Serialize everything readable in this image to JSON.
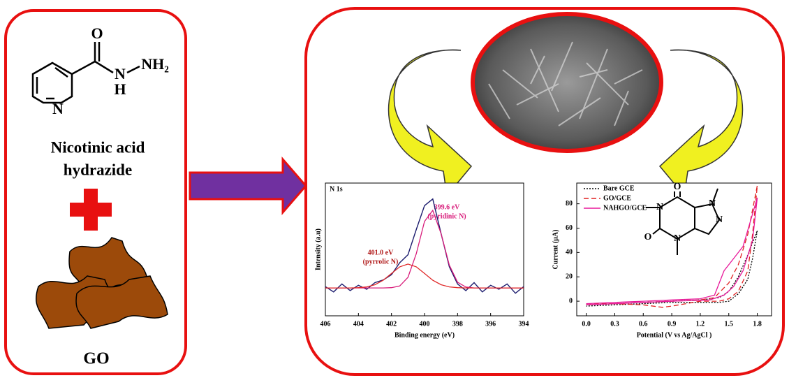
{
  "left_panel": {
    "structure_atoms": [
      "O",
      "N",
      "H",
      "NH₂"
    ],
    "name_lines": [
      "Nicotinic acid",
      "hydrazide"
    ],
    "go_label": "GO"
  },
  "inset_structure_atoms": [
    "O",
    "N",
    "N",
    "N",
    "O",
    "N"
  ],
  "chart_data": [
    {
      "type": "line",
      "title": "N 1s",
      "x_label": "Binding energy (eV)",
      "y_label": "Intensity (a.u)",
      "xlim": [
        406,
        394
      ],
      "xticks": [
        406,
        404,
        402,
        400,
        398,
        396,
        394
      ],
      "ylim": [
        0,
        100
      ],
      "annotations": [
        "399.6 eV",
        "(pyridinic N)",
        "401.0 eV",
        "(pyrrolic N)"
      ],
      "x": [
        406,
        405.5,
        405,
        404.5,
        404,
        403.5,
        403,
        402.5,
        402,
        401.5,
        401,
        400.5,
        400,
        399.5,
        399,
        398.5,
        398,
        397.5,
        397,
        396.5,
        396,
        395.5,
        395,
        394.5,
        394
      ],
      "series": [
        {
          "color": "#1c1c6e",
          "style": "solid",
          "values": [
            22,
            18,
            24,
            19,
            23,
            20,
            25,
            27,
            31,
            40,
            46,
            65,
            83,
            88,
            62,
            37,
            24,
            19,
            25,
            18,
            23,
            20,
            24,
            17,
            22
          ]
        },
        {
          "color": "#d81b7a",
          "style": "solid",
          "values": [
            21,
            21,
            21,
            21,
            21,
            21,
            21,
            21,
            21.2,
            22.5,
            29,
            46.8,
            71.1,
            79.4,
            61.9,
            38.2,
            25.3,
            21.7,
            21,
            21,
            21,
            21,
            21,
            21,
            21
          ]
        },
        {
          "color": "#e02828",
          "style": "solid",
          "values": [
            21,
            21,
            21,
            21,
            21.2,
            21.8,
            23.4,
            26.8,
            31.9,
            36.9,
            39,
            36.9,
            31.9,
            26.8,
            23.4,
            21.8,
            21.2,
            21,
            21,
            21,
            21,
            21,
            21,
            21,
            21
          ]
        }
      ]
    },
    {
      "type": "line",
      "x_label": "Potential (V vs Ag/AgCl )",
      "y_label": "Current (µA)",
      "xlim": [
        -0.1,
        1.95
      ],
      "xticks": [
        {
          "value": 0,
          "label": "0.0"
        },
        0.3,
        0.6,
        0.9,
        1.2,
        1.5,
        1.8
      ],
      "ylim": [
        -12,
        97
      ],
      "yticks": [
        0,
        20,
        40,
        60,
        80
      ],
      "series": [
        {
          "name": "Bare GCE",
          "color": "#000000",
          "style": "dotted",
          "x": [
            0,
            0.3,
            0.6,
            0.9,
            1.2,
            1.4,
            1.5,
            1.6,
            1.7,
            1.8,
            1.75,
            1.7,
            1.6,
            1.5,
            1.4,
            1.2,
            0.9,
            0.6,
            0.3,
            0
          ],
          "values": [
            -3,
            -2,
            -1,
            0,
            1,
            3,
            8,
            20,
            38,
            58,
            35,
            18,
            6,
            0,
            -1,
            -1,
            -1,
            -2,
            -3,
            -4
          ]
        },
        {
          "name": "GO/GCE",
          "color": "#e02020",
          "style": "dashed",
          "x": [
            0,
            0.3,
            0.6,
            0.9,
            1.2,
            1.35,
            1.5,
            1.6,
            1.7,
            1.8,
            1.75,
            1.7,
            1.6,
            1.5,
            1.4,
            1.2,
            0.9,
            0.8,
            0.6,
            0.3,
            0
          ],
          "values": [
            -2,
            -2,
            -1,
            0,
            1,
            3,
            15,
            30,
            55,
            95,
            55,
            25,
            8,
            2,
            0,
            0,
            -4,
            -5,
            -3,
            -2,
            -3
          ]
        },
        {
          "name": "NAHGO/GCE",
          "color": "#e8189a",
          "style": "solid",
          "x": [
            0,
            0.3,
            0.6,
            0.9,
            1.2,
            1.35,
            1.45,
            1.55,
            1.65,
            1.8,
            1.75,
            1.65,
            1.55,
            1.45,
            1.3,
            0.9,
            0.6,
            0.3,
            0
          ],
          "values": [
            -2,
            -1,
            0,
            1,
            2,
            5,
            25,
            35,
            45,
            85,
            50,
            25,
            12,
            5,
            1,
            0,
            -1,
            -2,
            -3
          ]
        }
      ]
    }
  ]
}
